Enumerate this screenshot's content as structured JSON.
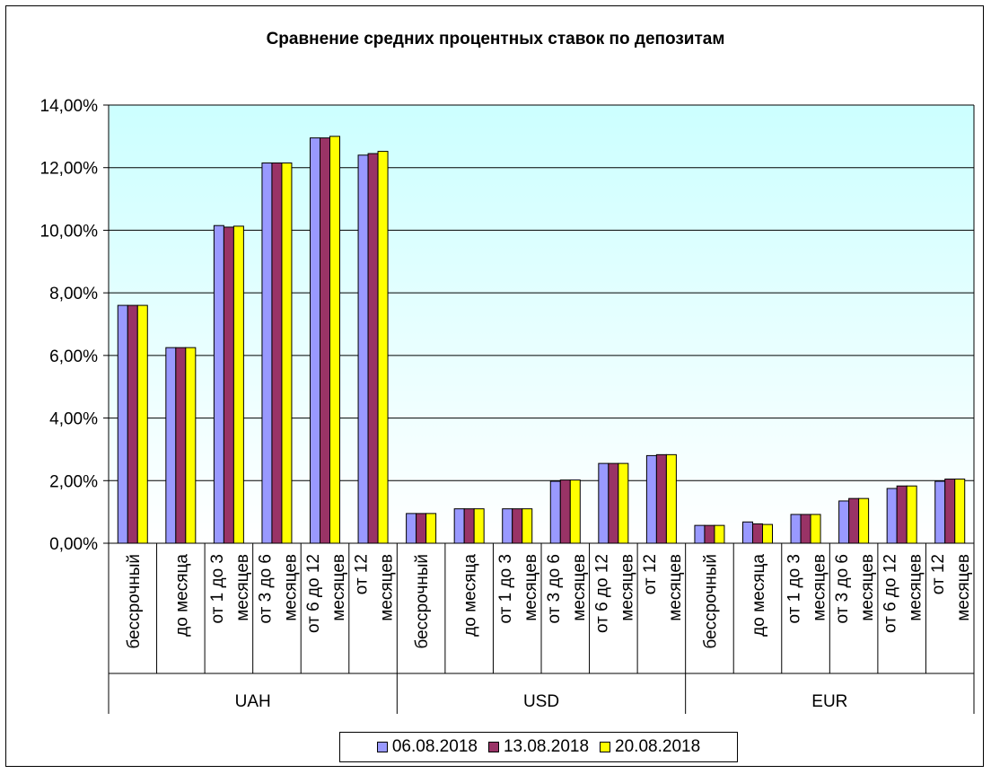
{
  "chart_data": {
    "type": "bar",
    "title": "Сравнение средних процентных ставок по депозитам",
    "xlabel": "",
    "ylabel": "",
    "ylim": [
      0,
      0.14
    ],
    "y_ticks": [
      0,
      0.02,
      0.04,
      0.06,
      0.08,
      0.1,
      0.12,
      0.14
    ],
    "y_tick_labels": [
      "0,00%",
      "2,00%",
      "4,00%",
      "6,00%",
      "8,00%",
      "10,00%",
      "12,00%",
      "14,00%"
    ],
    "grid": true,
    "legend_position": "bottom",
    "groups": [
      {
        "label": "UAH",
        "categories": [
          {
            "line1": "бессрочный",
            "line2": ""
          },
          {
            "line1": "до месяца",
            "line2": ""
          },
          {
            "line1": "от 1 до 3",
            "line2": "месяцев"
          },
          {
            "line1": "от 3 до 6",
            "line2": "месяцев"
          },
          {
            "line1": "от 6 до 12",
            "line2": "месяцев"
          },
          {
            "line1": "от 12",
            "line2": "месяцев"
          }
        ]
      },
      {
        "label": "USD",
        "categories": [
          {
            "line1": "бессрочный",
            "line2": ""
          },
          {
            "line1": "до месяца",
            "line2": ""
          },
          {
            "line1": "от 1 до 3",
            "line2": "месяцев"
          },
          {
            "line1": "от 3 до 6",
            "line2": "месяцев"
          },
          {
            "line1": "от 6 до 12",
            "line2": "месяцев"
          },
          {
            "line1": "от 12",
            "line2": "месяцев"
          }
        ]
      },
      {
        "label": "EUR",
        "categories": [
          {
            "line1": "бессрочный",
            "line2": ""
          },
          {
            "line1": "до месяца",
            "line2": ""
          },
          {
            "line1": "от 1 до 3",
            "line2": "месяцев"
          },
          {
            "line1": "от 3 до 6",
            "line2": "месяцев"
          },
          {
            "line1": "от 6 до 12",
            "line2": "месяцев"
          },
          {
            "line1": "от 12",
            "line2": "месяцев"
          }
        ]
      }
    ],
    "series": [
      {
        "name": "06.08.2018",
        "color": "#9999ff",
        "values": [
          0.076,
          0.0625,
          0.1015,
          0.1215,
          0.1295,
          0.124,
          0.0095,
          0.011,
          0.011,
          0.0198,
          0.0255,
          0.028,
          0.0057,
          0.0068,
          0.0092,
          0.0135,
          0.0175,
          0.0198
        ]
      },
      {
        "name": "13.08.2018",
        "color": "#993366",
        "values": [
          0.076,
          0.0625,
          0.101,
          0.1215,
          0.1295,
          0.1245,
          0.0095,
          0.011,
          0.011,
          0.0202,
          0.0255,
          0.0283,
          0.0057,
          0.0062,
          0.0092,
          0.0143,
          0.0183,
          0.0205
        ]
      },
      {
        "name": "20.08.2018",
        "color": "#ffff00",
        "values": [
          0.076,
          0.0625,
          0.1013,
          0.1215,
          0.13,
          0.1252,
          0.0095,
          0.011,
          0.011,
          0.0202,
          0.0255,
          0.0283,
          0.0057,
          0.006,
          0.0092,
          0.0143,
          0.0183,
          0.0205
        ]
      }
    ]
  }
}
